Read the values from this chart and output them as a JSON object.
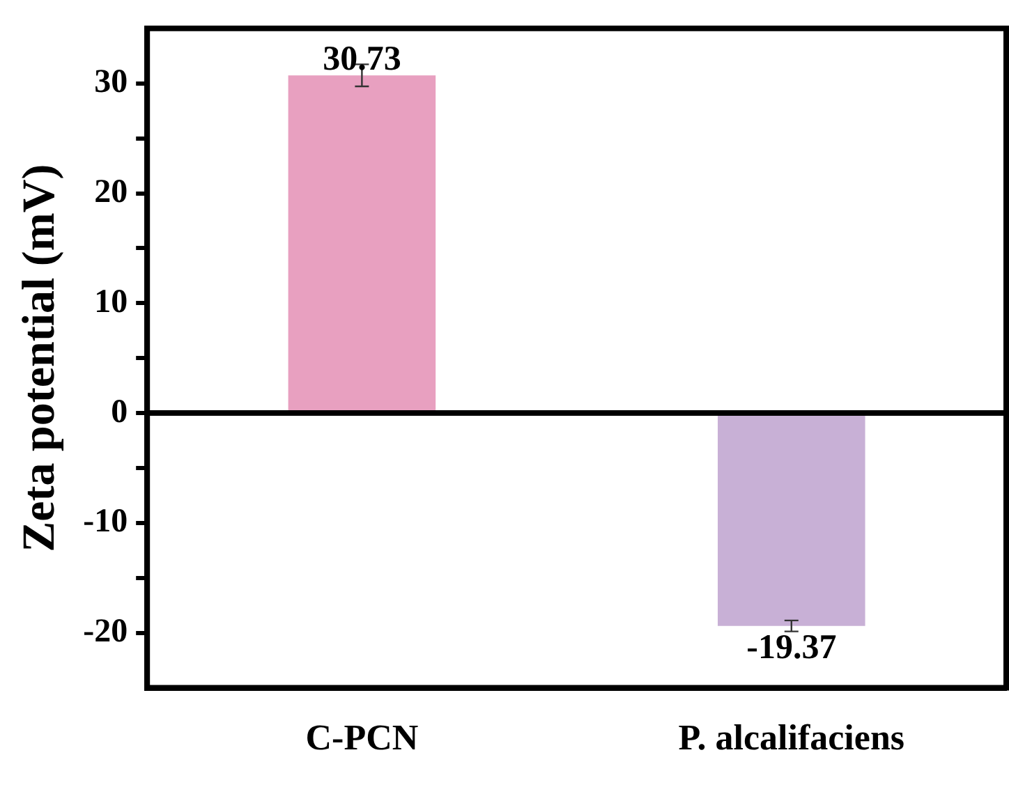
{
  "chart_data": {
    "type": "bar",
    "ylabel": "Zeta potential (mV)",
    "categories": [
      "C-PCN",
      "P. alcalifaciens"
    ],
    "values": [
      30.73,
      -19.37
    ],
    "errors": [
      1,
      0.5
    ],
    "colors": [
      "#e8a0c0",
      "#c8b0d6"
    ],
    "data_labels": true,
    "ylim": [
      -25,
      35
    ],
    "yticks": [
      -20,
      {
        "value": -15,
        "label": null
      },
      -10,
      {
        "value": -5,
        "label": null
      },
      0,
      {
        "value": 5,
        "label": null
      },
      10,
      {
        "value": 15,
        "label": null
      },
      20,
      {
        "value": 25,
        "label": null
      },
      30
    ],
    "ref_lines": [
      {
        "axis": "y",
        "value": 0,
        "color": "#000000"
      }
    ],
    "grid": false,
    "legend": false
  }
}
